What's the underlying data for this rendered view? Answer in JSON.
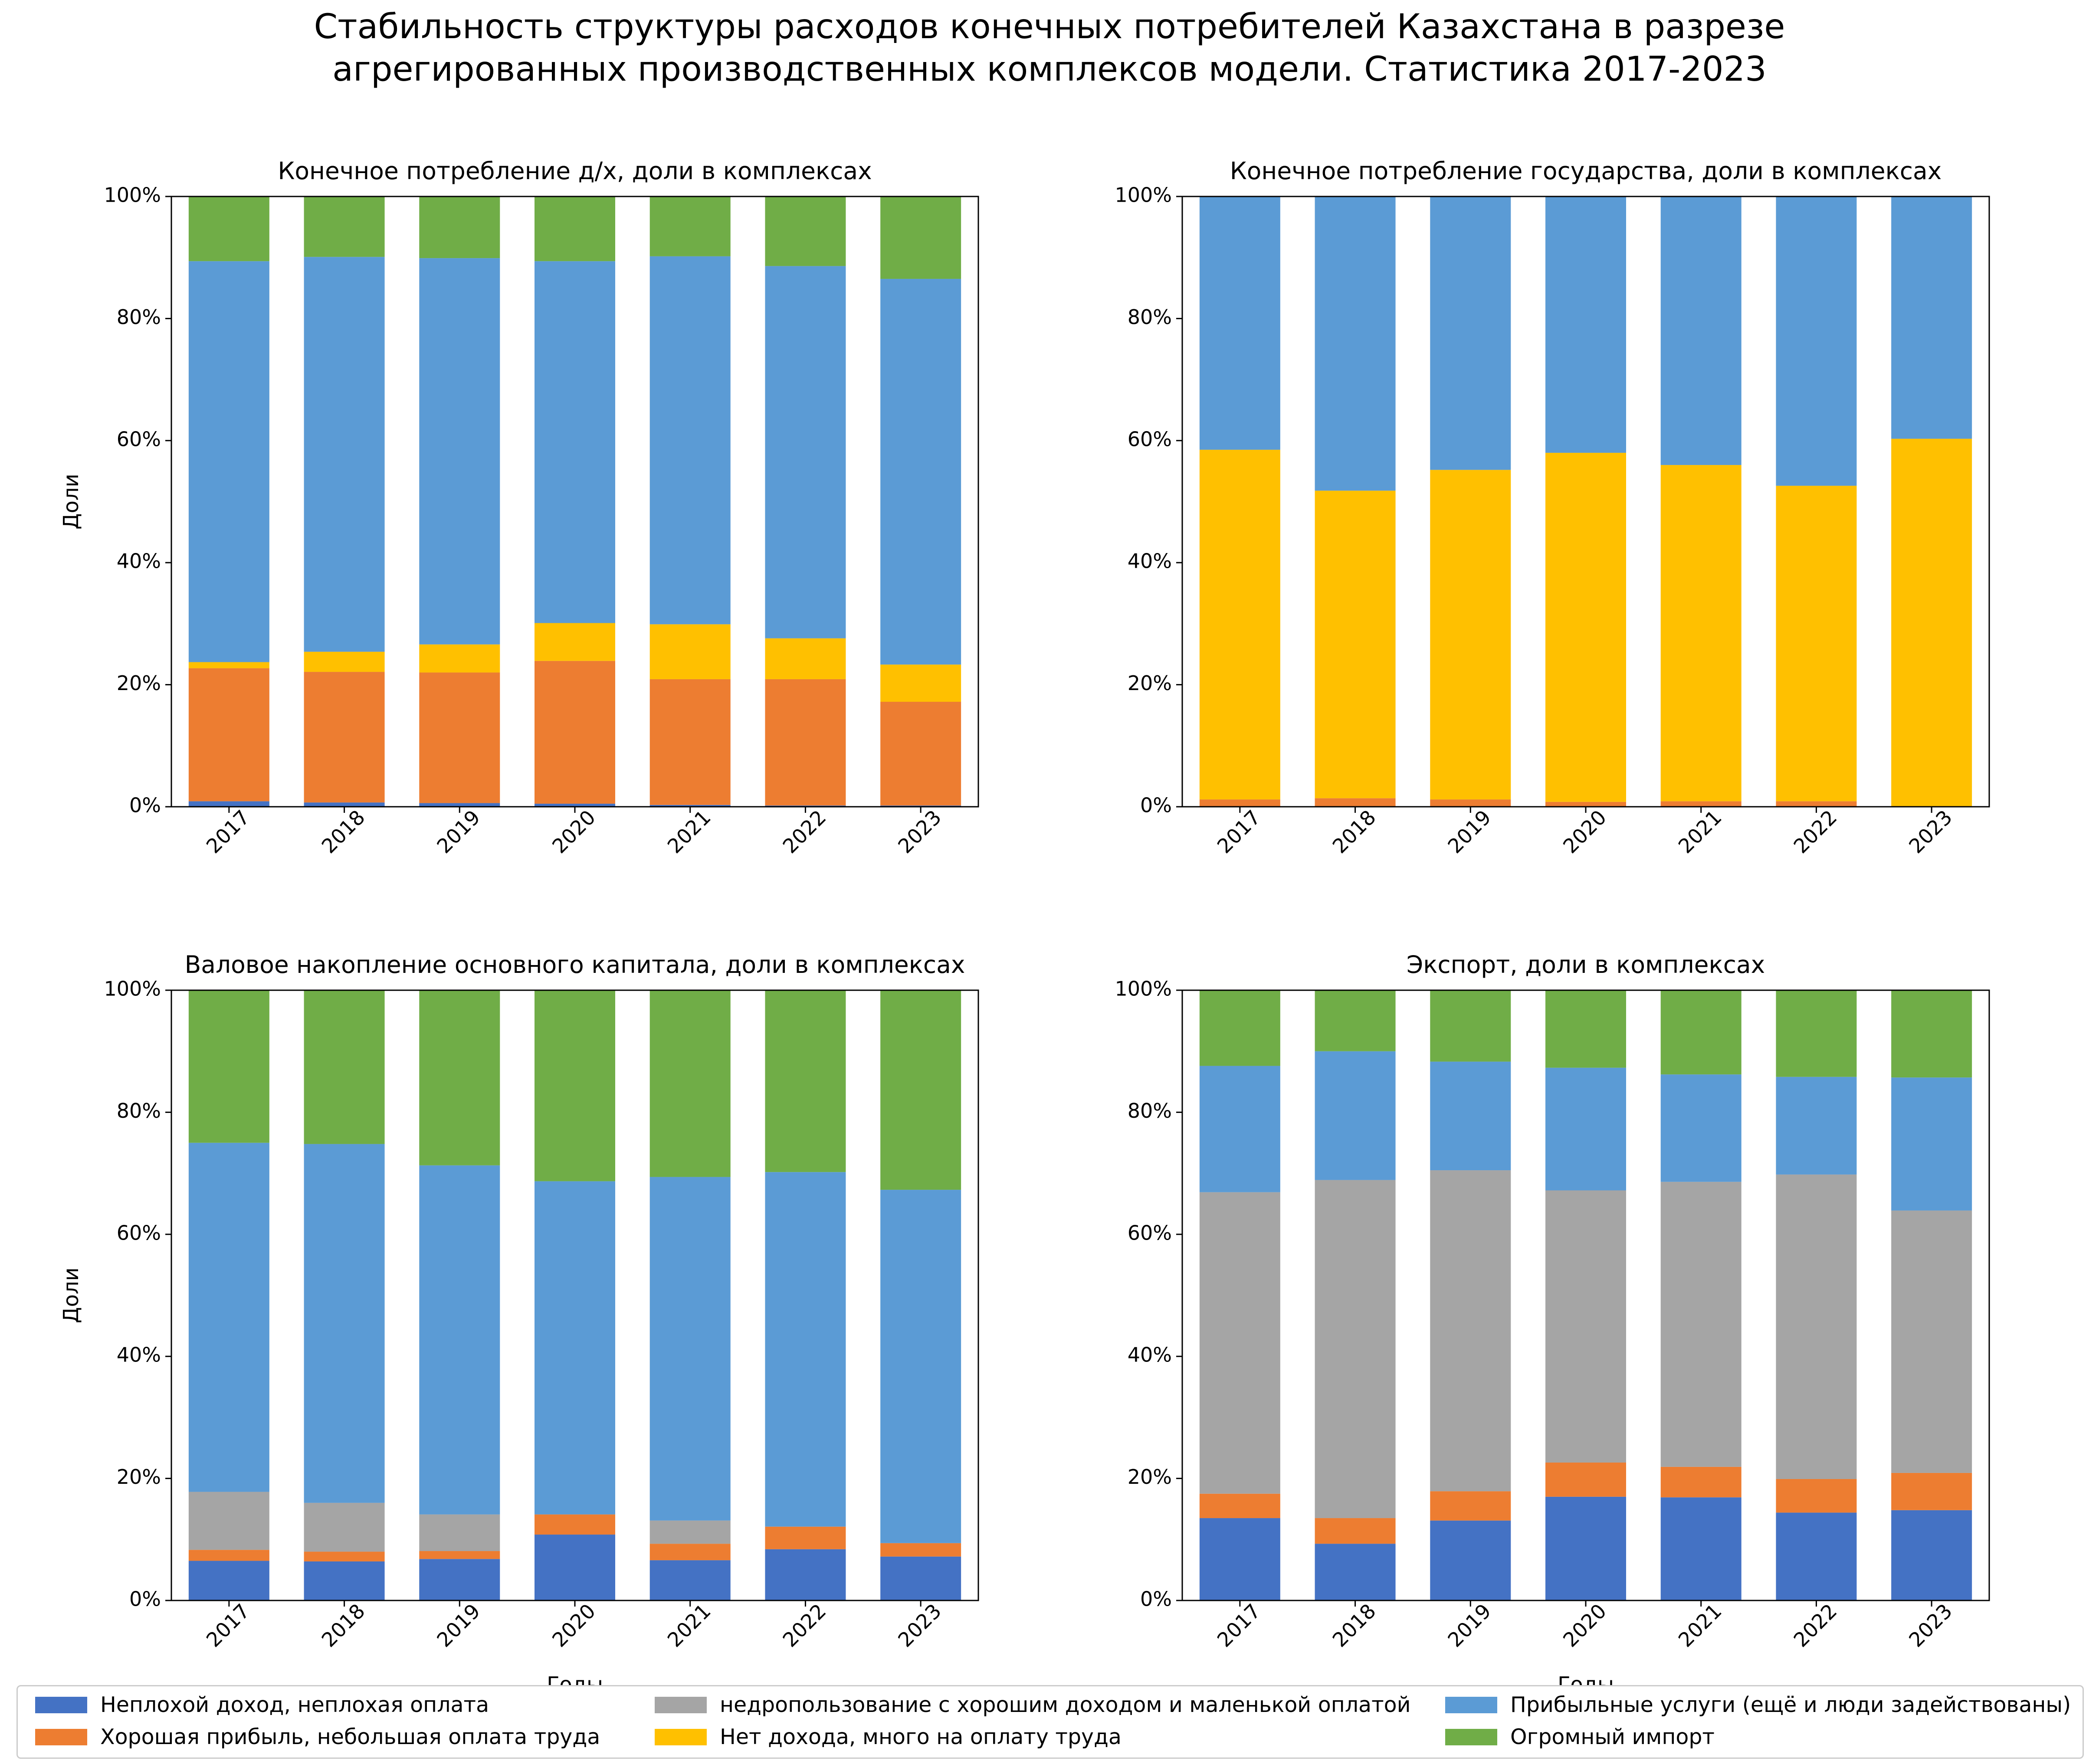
{
  "title": "Стабильность структуры расходов конечных потребителей Казахстана в разрезе агрегированных производственных комплексов модели. Статистика 2017-2023",
  "title_lines": [
    "Стабильность структуры расходов конечных потребителей Казахстана в разрезе",
    "агрегированных производственных комплексов модели. Статистика 2017-2023"
  ],
  "legend": {
    "items": [
      {
        "label": "Неплохой доход, неплохая оплата",
        "color": "#4472C4"
      },
      {
        "label": "Хорошая прибыль, небольшая оплата труда",
        "color": "#ED7D31"
      },
      {
        "label": "недропользование с хорошим доходом и маленькой оплатой",
        "color": "#A5A5A5"
      },
      {
        "label": "Нет дохода, много на оплату труда",
        "color": "#FFC000"
      },
      {
        "label": "Прибыльные услуги (ещё и люди задействованы)",
        "color": "#5B9BD5"
      },
      {
        "label": "Огромный импорт",
        "color": "#70AD47"
      }
    ],
    "placement": "bottom"
  },
  "chart_data": [
    {
      "type": "bar",
      "stacked": true,
      "title": "Конечное потребление д/х, доли в комплексах",
      "xlabel": "",
      "ylabel": "Доли",
      "ylim": [
        0,
        100
      ],
      "yticks": [
        "0%",
        "20%",
        "40%",
        "60%",
        "80%",
        "100%"
      ],
      "categories": [
        "2017",
        "2018",
        "2019",
        "2020",
        "2021",
        "2022",
        "2023"
      ],
      "series": [
        {
          "name": "Неплохой доход, неплохая оплата",
          "values": [
            0.9,
            0.7,
            0.6,
            0.5,
            0.3,
            0.2,
            0.2
          ]
        },
        {
          "name": "Хорошая прибыль, небольшая оплата труда",
          "values": [
            21.8,
            21.4,
            21.4,
            23.4,
            20.6,
            20.7,
            17.0
          ]
        },
        {
          "name": "недропользование с хорошим доходом и маленькой оплатой",
          "values": [
            0,
            0,
            0,
            0,
            0,
            0,
            0
          ]
        },
        {
          "name": "Нет дохода, много на оплату труда",
          "values": [
            1.0,
            3.3,
            4.6,
            6.2,
            9.0,
            6.7,
            6.1
          ]
        },
        {
          "name": "Прибыльные услуги (ещё и люди задействованы)",
          "values": [
            65.7,
            64.7,
            63.3,
            59.3,
            60.3,
            61.0,
            63.2
          ]
        },
        {
          "name": "Огромный импорт",
          "values": [
            10.6,
            9.9,
            10.1,
            10.6,
            9.8,
            11.4,
            13.5
          ]
        }
      ]
    },
    {
      "type": "bar",
      "stacked": true,
      "title": "Конечное потребление государства, доли в комплексах",
      "xlabel": "",
      "ylabel": "",
      "ylim": [
        0,
        100
      ],
      "yticks": [
        "0%",
        "20%",
        "40%",
        "60%",
        "80%",
        "100%"
      ],
      "categories": [
        "2017",
        "2018",
        "2019",
        "2020",
        "2021",
        "2022",
        "2023"
      ],
      "series": [
        {
          "name": "Неплохой доход, неплохая оплата",
          "values": [
            0,
            0,
            0,
            0,
            0,
            0,
            0
          ]
        },
        {
          "name": "Хорошая прибыль, небольшая оплата труда",
          "values": [
            1.2,
            1.4,
            1.2,
            0.8,
            0.9,
            0.9,
            0
          ]
        },
        {
          "name": "недропользование с хорошим доходом и маленькой оплатой",
          "values": [
            0,
            0,
            0,
            0,
            0,
            0,
            0
          ]
        },
        {
          "name": "Нет дохода, много на оплату труда",
          "values": [
            57.3,
            50.4,
            54.0,
            57.2,
            55.1,
            51.7,
            60.3
          ]
        },
        {
          "name": "Прибыльные услуги (ещё и люди задействованы)",
          "values": [
            41.5,
            48.2,
            44.8,
            42.0,
            44.0,
            47.4,
            39.7
          ]
        },
        {
          "name": "Огромный импорт",
          "values": [
            0,
            0,
            0,
            0,
            0,
            0,
            0
          ]
        }
      ]
    },
    {
      "type": "bar",
      "stacked": true,
      "title": "Валовое накопление основного капитала, доли в комплексах",
      "xlabel": "Годы",
      "ylabel": "Доли",
      "ylim": [
        0,
        100
      ],
      "yticks": [
        "0%",
        "20%",
        "40%",
        "60%",
        "80%",
        "100%"
      ],
      "categories": [
        "2017",
        "2018",
        "2019",
        "2020",
        "2021",
        "2022",
        "2023"
      ],
      "series": [
        {
          "name": "Неплохой доход, неплохая оплата",
          "values": [
            6.5,
            6.4,
            6.8,
            10.8,
            6.6,
            8.4,
            7.2
          ]
        },
        {
          "name": "Хорошая прибыль, небольшая оплата труда",
          "values": [
            1.8,
            1.6,
            1.3,
            3.3,
            2.7,
            3.7,
            2.2
          ]
        },
        {
          "name": "недропользование с хорошим доходом и маленькой оплатой",
          "values": [
            9.5,
            8.0,
            6.0,
            0,
            3.8,
            0,
            0
          ]
        },
        {
          "name": "Нет дохода, много на оплату труда",
          "values": [
            0,
            0,
            0,
            0,
            0,
            0,
            0
          ]
        },
        {
          "name": "Прибыльные услуги (ещё и люди задействованы)",
          "values": [
            57.2,
            58.8,
            57.2,
            54.6,
            56.3,
            58.1,
            57.9
          ]
        },
        {
          "name": "Огромный импорт",
          "values": [
            25.0,
            25.2,
            28.7,
            31.3,
            30.6,
            29.8,
            32.7
          ]
        }
      ]
    },
    {
      "type": "bar",
      "stacked": true,
      "title": "Экспорт, доли в комплексах",
      "xlabel": "Годы",
      "ylabel": "",
      "ylim": [
        0,
        100
      ],
      "yticks": [
        "0%",
        "20%",
        "40%",
        "60%",
        "80%",
        "100%"
      ],
      "categories": [
        "2017",
        "2018",
        "2019",
        "2020",
        "2021",
        "2022",
        "2023"
      ],
      "series": [
        {
          "name": "Неплохой доход, неплохая оплата",
          "values": [
            13.5,
            9.3,
            13.1,
            17.0,
            16.9,
            14.4,
            14.8
          ]
        },
        {
          "name": "Хорошая прибыль, небольшая оплата труда",
          "values": [
            4.0,
            4.2,
            4.8,
            5.6,
            5.0,
            5.5,
            6.1
          ]
        },
        {
          "name": "недропользование с хорошим доходом и маленькой оплатой",
          "values": [
            49.4,
            55.4,
            52.6,
            44.6,
            46.7,
            49.9,
            43.0
          ]
        },
        {
          "name": "Нет дохода, много на оплату труда",
          "values": [
            0,
            0,
            0,
            0,
            0,
            0,
            0
          ]
        },
        {
          "name": "Прибыльные услуги (ещё и люди задействованы)",
          "values": [
            20.7,
            21.1,
            17.8,
            20.1,
            17.6,
            16.0,
            21.8
          ]
        },
        {
          "name": "Огромный импорт",
          "values": [
            12.4,
            10.0,
            11.7,
            12.7,
            13.8,
            14.2,
            14.3
          ]
        }
      ]
    }
  ]
}
